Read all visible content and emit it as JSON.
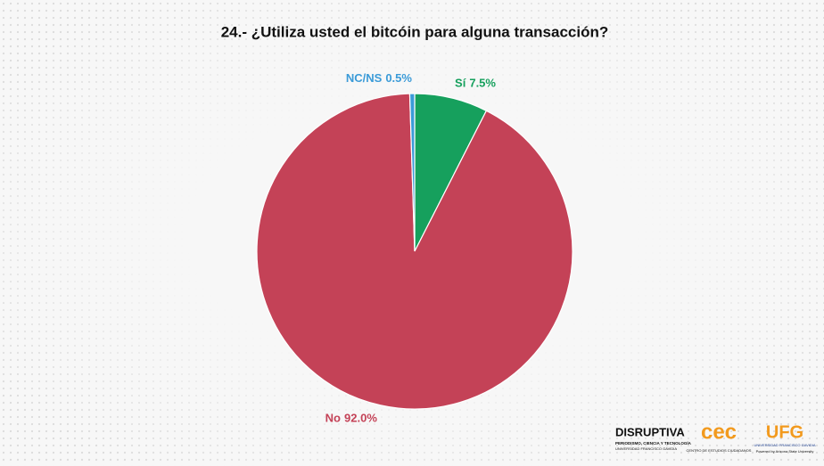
{
  "chart_data": {
    "type": "pie",
    "title": "24.- ¿Utiliza usted el bitcóin para alguna transacción?",
    "categories": [
      "Sí",
      "No",
      "NC/NS"
    ],
    "values": [
      7.5,
      92.0,
      0.5
    ],
    "value_labels": [
      "7.5%",
      "92.0%",
      "0.5%"
    ],
    "colors": [
      "#16a05d",
      "#c44257",
      "#3b9bd8"
    ]
  },
  "logos": {
    "disruptiva": "DISRUPTIVA",
    "disruptiva_sub": "PERIODISMO, CIENCIA Y TECNOLOGÍA",
    "disruptiva_sub2": "UNIVERSIDAD FRANCISCO GAVIDIA",
    "cec": "cec",
    "cec_sub": "CENTRO DE ESTUDIOS CIUDADANOS",
    "ufg": "UFG",
    "ufg_sub": "UNIVERSIDAD FRANCISCO GAVIDIA",
    "ufg_sub2": "Powered by Arizona State University"
  }
}
